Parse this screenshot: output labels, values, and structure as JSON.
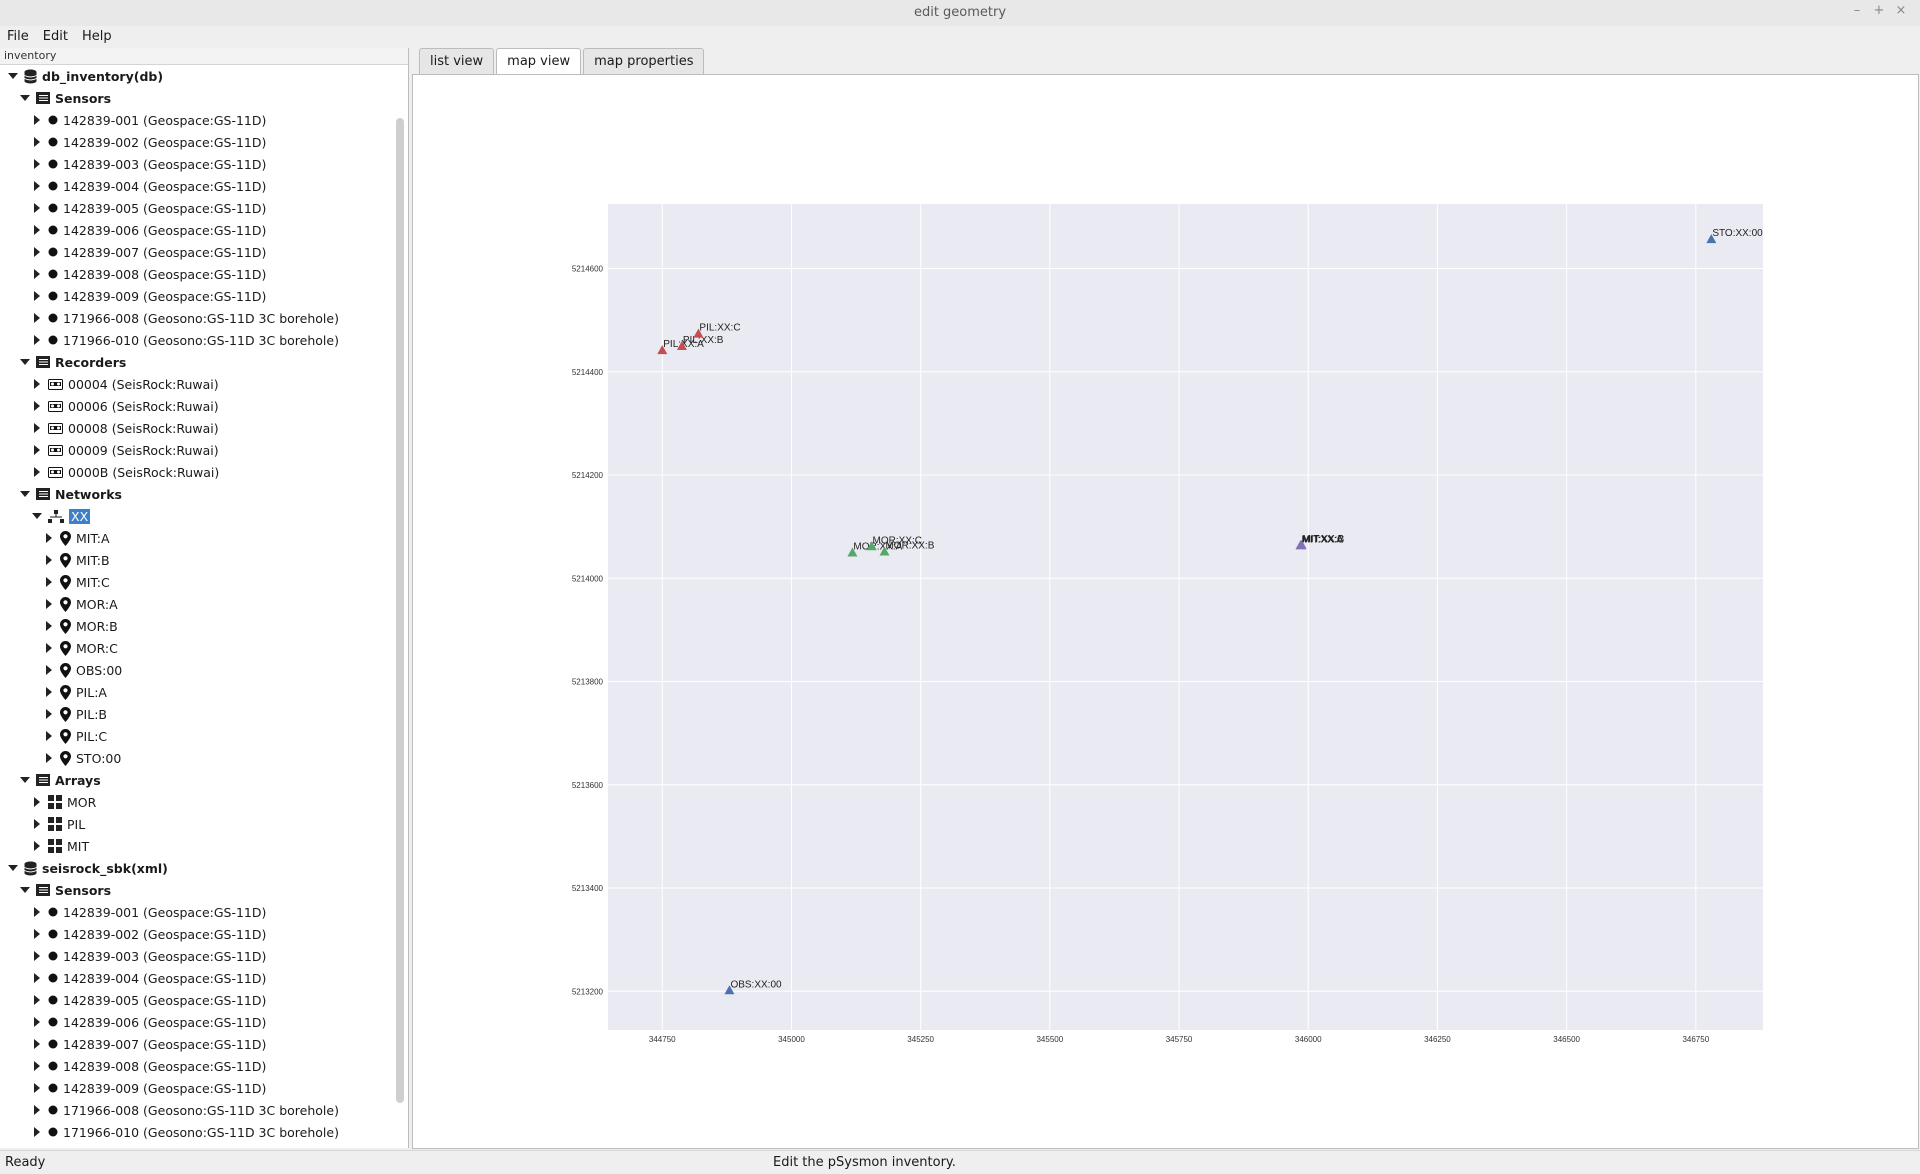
{
  "window": {
    "title": "edit geometry"
  },
  "menu": {
    "file": "File",
    "edit": "Edit",
    "help": "Help"
  },
  "sidebar": {
    "header": "inventory",
    "tree": [
      {
        "level": 0,
        "open": true,
        "icon": "db",
        "label": "db_inventory(db)",
        "bold": true
      },
      {
        "level": 1,
        "open": true,
        "icon": "folder",
        "label": "Sensors",
        "bold": true
      },
      {
        "level": 2,
        "icon": "dot",
        "label": "142839-001 (Geospace:GS-11D)"
      },
      {
        "level": 2,
        "icon": "dot",
        "label": "142839-002 (Geospace:GS-11D)"
      },
      {
        "level": 2,
        "icon": "dot",
        "label": "142839-003 (Geospace:GS-11D)"
      },
      {
        "level": 2,
        "icon": "dot",
        "label": "142839-004 (Geospace:GS-11D)"
      },
      {
        "level": 2,
        "icon": "dot",
        "label": "142839-005 (Geospace:GS-11D)"
      },
      {
        "level": 2,
        "icon": "dot",
        "label": "142839-006 (Geospace:GS-11D)"
      },
      {
        "level": 2,
        "icon": "dot",
        "label": "142839-007 (Geospace:GS-11D)"
      },
      {
        "level": 2,
        "icon": "dot",
        "label": "142839-008 (Geospace:GS-11D)"
      },
      {
        "level": 2,
        "icon": "dot",
        "label": "142839-009 (Geospace:GS-11D)"
      },
      {
        "level": 2,
        "icon": "dot",
        "label": "171966-008 (Geosono:GS-11D 3C borehole)"
      },
      {
        "level": 2,
        "icon": "dot",
        "label": "171966-010 (Geosono:GS-11D 3C borehole)"
      },
      {
        "level": 1,
        "open": true,
        "icon": "folder",
        "label": "Recorders",
        "bold": true
      },
      {
        "level": 2,
        "icon": "tape",
        "label": "00004 (SeisRock:Ruwai)"
      },
      {
        "level": 2,
        "icon": "tape",
        "label": "00006 (SeisRock:Ruwai)"
      },
      {
        "level": 2,
        "icon": "tape",
        "label": "00008 (SeisRock:Ruwai)"
      },
      {
        "level": 2,
        "icon": "tape",
        "label": "00009 (SeisRock:Ruwai)"
      },
      {
        "level": 2,
        "icon": "tape",
        "label": "0000B (SeisRock:Ruwai)"
      },
      {
        "level": 1,
        "open": true,
        "icon": "folder",
        "label": "Networks",
        "bold": true
      },
      {
        "level": 2,
        "open": true,
        "icon": "network",
        "label": "XX",
        "selected": true
      },
      {
        "level": 3,
        "icon": "pin",
        "label": "MIT:A"
      },
      {
        "level": 3,
        "icon": "pin",
        "label": "MIT:B"
      },
      {
        "level": 3,
        "icon": "pin",
        "label": "MIT:C"
      },
      {
        "level": 3,
        "icon": "pin",
        "label": "MOR:A"
      },
      {
        "level": 3,
        "icon": "pin",
        "label": "MOR:B"
      },
      {
        "level": 3,
        "icon": "pin",
        "label": "MOR:C"
      },
      {
        "level": 3,
        "icon": "pin",
        "label": "OBS:00"
      },
      {
        "level": 3,
        "icon": "pin",
        "label": "PIL:A"
      },
      {
        "level": 3,
        "icon": "pin",
        "label": "PIL:B"
      },
      {
        "level": 3,
        "icon": "pin",
        "label": "PIL:C"
      },
      {
        "level": 3,
        "icon": "pin",
        "label": "STO:00"
      },
      {
        "level": 1,
        "open": true,
        "icon": "folder",
        "label": "Arrays",
        "bold": true
      },
      {
        "level": 2,
        "icon": "grid",
        "label": "MOR"
      },
      {
        "level": 2,
        "icon": "grid",
        "label": "PIL"
      },
      {
        "level": 2,
        "icon": "grid",
        "label": "MIT"
      },
      {
        "level": 0,
        "open": true,
        "icon": "db",
        "label": "seisrock_sbk(xml)",
        "bold": true
      },
      {
        "level": 1,
        "open": true,
        "icon": "folder",
        "label": "Sensors",
        "bold": true
      },
      {
        "level": 2,
        "icon": "dot",
        "label": "142839-001 (Geospace:GS-11D)"
      },
      {
        "level": 2,
        "icon": "dot",
        "label": "142839-002 (Geospace:GS-11D)"
      },
      {
        "level": 2,
        "icon": "dot",
        "label": "142839-003 (Geospace:GS-11D)"
      },
      {
        "level": 2,
        "icon": "dot",
        "label": "142839-004 (Geospace:GS-11D)"
      },
      {
        "level": 2,
        "icon": "dot",
        "label": "142839-005 (Geospace:GS-11D)"
      },
      {
        "level": 2,
        "icon": "dot",
        "label": "142839-006 (Geospace:GS-11D)"
      },
      {
        "level": 2,
        "icon": "dot",
        "label": "142839-007 (Geospace:GS-11D)"
      },
      {
        "level": 2,
        "icon": "dot",
        "label": "142839-008 (Geospace:GS-11D)"
      },
      {
        "level": 2,
        "icon": "dot",
        "label": "142839-009 (Geospace:GS-11D)"
      },
      {
        "level": 2,
        "icon": "dot",
        "label": "171966-008 (Geosono:GS-11D 3C borehole)"
      },
      {
        "level": 2,
        "icon": "dot",
        "label": "171966-010 (Geosono:GS-11D 3C borehole)"
      }
    ]
  },
  "tabs": [
    {
      "label": "list view",
      "active": false
    },
    {
      "label": "map view",
      "active": true
    },
    {
      "label": "map properties",
      "active": false
    }
  ],
  "map": {
    "colors": {
      "plot_bg": "#eaeaf2",
      "grid": "#ffffff",
      "PIL": "#c44e52",
      "MOR": "#55a868",
      "MIT": "#8172b2",
      "OBS": "#4c72b0",
      "STO": "#4c72b0"
    },
    "xlim": [
      344645,
      346880
    ],
    "ylim": [
      5213125,
      5214725
    ],
    "xticks": [
      344750,
      345000,
      345250,
      345500,
      345750,
      346000,
      346250,
      346500,
      346750
    ],
    "yticks": [
      5213200,
      5213400,
      5213600,
      5213800,
      5214000,
      5214200,
      5214400,
      5214600
    ],
    "stations": [
      {
        "group": "PIL",
        "label": "PIL:XX:A",
        "x": 344750,
        "y": 5214440
      },
      {
        "group": "PIL",
        "label": "PIL:XX:B",
        "x": 344788,
        "y": 5214448
      },
      {
        "group": "PIL",
        "label": "PIL:XX:C",
        "x": 344820,
        "y": 5214472
      },
      {
        "group": "MOR",
        "label": "MOR:XX:A",
        "x": 345118,
        "y": 5214048
      },
      {
        "group": "MOR",
        "label": "MOR:XX:B",
        "x": 345180,
        "y": 5214050
      },
      {
        "group": "MOR",
        "label": "MOR:XX:C",
        "x": 345155,
        "y": 5214060
      },
      {
        "group": "MIT",
        "label": "MIT:XX:A",
        "x": 345985,
        "y": 5214062
      },
      {
        "group": "MIT",
        "label": "MIT:XX:B",
        "x": 345987,
        "y": 5214063
      },
      {
        "group": "MIT",
        "label": "MIT:XX:C",
        "x": 345986,
        "y": 5214062
      },
      {
        "group": "OBS",
        "label": "OBS:XX:00",
        "x": 344880,
        "y": 5213200
      },
      {
        "group": "STO",
        "label": "STO:XX:00",
        "x": 346780,
        "y": 5214655
      }
    ]
  },
  "status": {
    "left": "Ready",
    "center": "Edit the pSysmon inventory."
  }
}
